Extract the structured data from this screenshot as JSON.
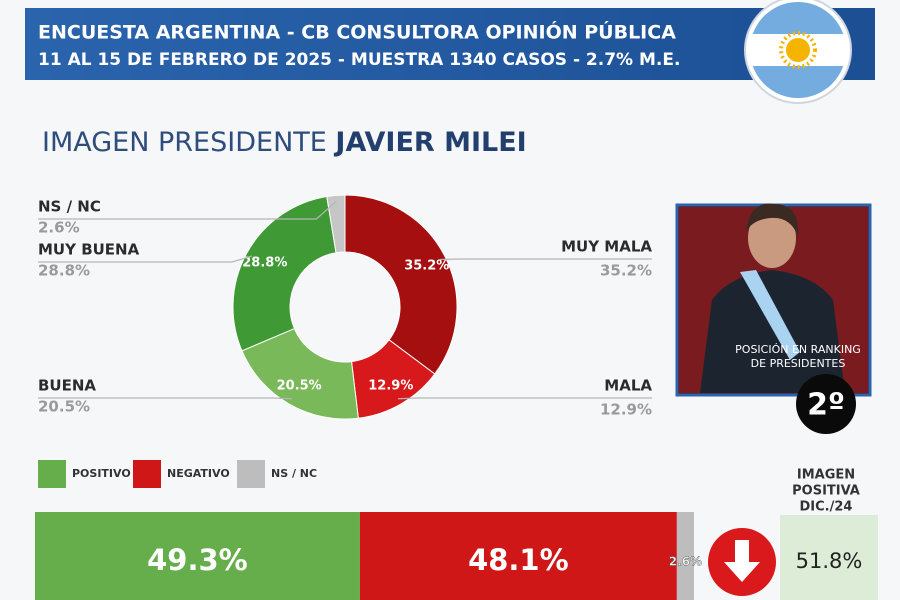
{
  "header": {
    "line1": "ENCUESTA ARGENTINA - CB CONSULTORA OPINIÓN PÚBLICA",
    "line2": "11 AL 15 DE FEBRERO DE 2025 - MUESTRA 1340 CASOS - 2.7% M.E."
  },
  "title": {
    "prefix": "IMAGEN PRESIDENTE",
    "name": "JAVIER MILEI"
  },
  "chart_data": [
    {
      "type": "donut",
      "categories": [
        "MUY MALA",
        "MALA",
        "BUENA",
        "MUY BUENA",
        "NS / NC"
      ],
      "values": [
        35.2,
        12.9,
        20.5,
        28.8,
        2.6
      ],
      "value_labels": [
        "35.2%",
        "12.9%",
        "20.5%",
        "28.8%",
        "2.6%"
      ],
      "colors": [
        "#a50f10",
        "#d8191b",
        "#79b95a",
        "#3f9935",
        "#c6c6c6"
      ]
    },
    {
      "type": "stacked-bar",
      "categories": [
        "POSITIVO",
        "NEGATIVO",
        "NS / NC"
      ],
      "values": [
        49.3,
        48.1,
        2.6
      ],
      "value_labels": [
        "49.3%",
        "48.1%",
        "2.6%"
      ],
      "colors": [
        "#66ad4c",
        "#cf1718",
        "#bdbdbd"
      ]
    }
  ],
  "ranking": {
    "label": [
      "POSICIÓN EN RANKING",
      "DE PRESIDENTES"
    ],
    "position": "2º"
  },
  "previous": {
    "label": [
      "IMAGEN",
      "POSITIVA",
      "DIC./24"
    ],
    "value": "51.8%"
  }
}
